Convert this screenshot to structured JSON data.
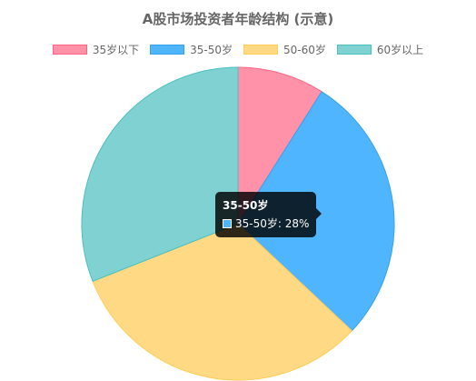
{
  "chart_data": {
    "type": "pie",
    "title": "A股市场投资者年龄结构 (示意)",
    "categories": [
      "35岁以下",
      "35-50岁",
      "50-60岁",
      "60岁以上"
    ],
    "values": [
      9,
      28,
      32,
      31
    ],
    "unit": "%",
    "legend": "top",
    "colors": {
      "fill": [
        "#ff91a9",
        "#4fb5ff",
        "#ffd983",
        "#80d1d1"
      ],
      "border": [
        "#ff6384",
        "#36a2eb",
        "#ffcd56",
        "#4bc0c0"
      ]
    }
  },
  "tooltip": {
    "title": "35-50岁",
    "label": "35-50岁: 28%",
    "series_index": 1
  }
}
